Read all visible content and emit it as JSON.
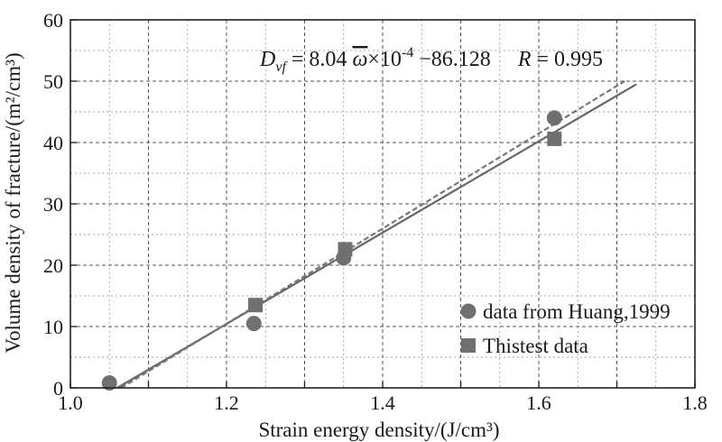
{
  "chart_data": {
    "type": "scatter",
    "title": "",
    "xlabel": "Strain energy density/(J/cm³)",
    "ylabel": "Volume density of fracture/(m²/cm³)",
    "xlim": [
      1.0,
      1.8
    ],
    "ylim": [
      0,
      60
    ],
    "x_ticks": [
      1.0,
      1.1,
      1.2,
      1.3,
      1.4,
      1.5,
      1.6,
      1.7,
      1.8
    ],
    "x_tick_labels": [
      "1.0",
      "",
      "1.2",
      "",
      "1.4",
      "",
      "1.6",
      "",
      "1.8"
    ],
    "y_ticks": [
      0,
      10,
      20,
      30,
      40,
      50,
      60
    ],
    "y_tick_labels": [
      "0",
      "10",
      "20",
      "30",
      "40",
      "50",
      "60"
    ],
    "grid": true,
    "grid_style": "dashed",
    "legend_position": "bottom-right",
    "series": [
      {
        "name": "data from Huang,1999",
        "marker": "circle",
        "color": "#707070",
        "points": [
          {
            "x": 1.05,
            "y": 0.8
          },
          {
            "x": 1.235,
            "y": 10.5
          },
          {
            "x": 1.35,
            "y": 21.2
          },
          {
            "x": 1.62,
            "y": 44.0
          }
        ]
      },
      {
        "name": "Thistest data",
        "marker": "square",
        "color": "#707070",
        "points": [
          {
            "x": 1.237,
            "y": 13.5
          },
          {
            "x": 1.352,
            "y": 22.6
          },
          {
            "x": 1.62,
            "y": 40.6
          }
        ]
      }
    ],
    "fit_lines": [
      {
        "style": "solid",
        "color": "#666666",
        "from": [
          1.06,
          0.0
        ],
        "to": [
          1.725,
          49.5
        ]
      },
      {
        "style": "dashed",
        "color": "#777777",
        "from": [
          1.065,
          0.0
        ],
        "to": [
          1.71,
          50.0
        ]
      }
    ],
    "annotation": {
      "d": "D",
      "sub": "vf",
      "eq_mid": " = 8.04 ",
      "omega": "ω",
      "times_ten": "×10",
      "exp": "-4",
      "minus_const": " −86.128",
      "r": "R",
      "r_value": " = 0.995"
    }
  }
}
